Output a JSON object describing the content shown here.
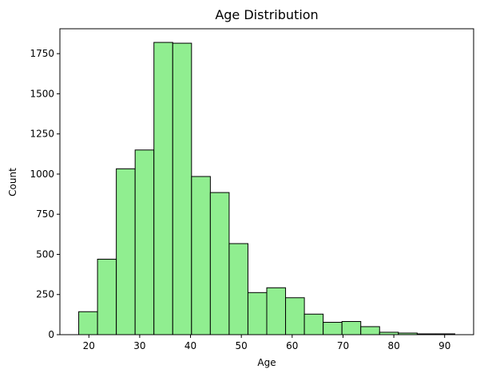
{
  "chart_data": {
    "type": "bar",
    "title": "Age Distribution",
    "xlabel": "Age",
    "ylabel": "Count",
    "bin_edges": [
      18.0,
      21.7,
      25.4,
      29.1,
      32.8,
      36.5,
      40.2,
      43.9,
      47.6,
      51.3,
      55.0,
      58.7,
      62.4,
      66.1,
      69.8,
      73.5,
      77.2,
      80.9,
      84.6,
      88.3,
      92.0
    ],
    "values": [
      143,
      470,
      1033,
      1150,
      1820,
      1815,
      985,
      885,
      567,
      262,
      292,
      230,
      128,
      77,
      82,
      50,
      15,
      10,
      5,
      5
    ],
    "xlim": [
      14.3,
      95.7
    ],
    "ylim": [
      0,
      1905
    ],
    "xticks": [
      20,
      30,
      40,
      50,
      60,
      70,
      80,
      90
    ],
    "yticks": [
      0,
      250,
      500,
      750,
      1000,
      1250,
      1500,
      1750
    ],
    "grid": false,
    "colors": {
      "bar_fill": "#90ee90",
      "bar_edge": "#000000"
    }
  }
}
